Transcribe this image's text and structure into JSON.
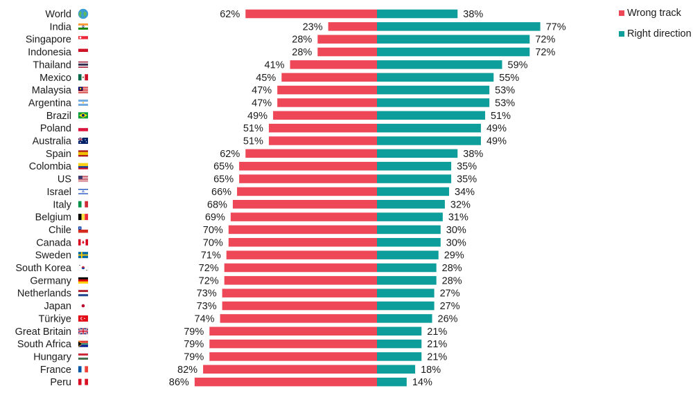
{
  "colors": {
    "wrong": "#EE4758",
    "right": "#0D9E9C"
  },
  "legend": {
    "wrong_label": "Wrong track",
    "right_label": "Right direction"
  },
  "chart_data": {
    "type": "bar",
    "orientation": "horizontal-diverging",
    "categories": [
      "World",
      "India",
      "Singapore",
      "Indonesia",
      "Thailand",
      "Mexico",
      "Malaysia",
      "Argentina",
      "Brazil",
      "Poland",
      "Australia",
      "Spain",
      "Colombia",
      "US",
      "Israel",
      "Italy",
      "Belgium",
      "Chile",
      "Canada",
      "Sweden",
      "South Korea",
      "Germany",
      "Netherlands",
      "Japan",
      "Türkiye",
      "Great Britain",
      "South Africa",
      "Hungary",
      "France",
      "Peru"
    ],
    "flag_icons": [
      "globe-icon",
      "india-flag-icon",
      "singapore-flag-icon",
      "indonesia-flag-icon",
      "thailand-flag-icon",
      "mexico-flag-icon",
      "malaysia-flag-icon",
      "argentina-flag-icon",
      "brazil-flag-icon",
      "poland-flag-icon",
      "australia-flag-icon",
      "spain-flag-icon",
      "colombia-flag-icon",
      "us-flag-icon",
      "israel-flag-icon",
      "italy-flag-icon",
      "belgium-flag-icon",
      "chile-flag-icon",
      "canada-flag-icon",
      "sweden-flag-icon",
      "south-korea-flag-icon",
      "germany-flag-icon",
      "netherlands-flag-icon",
      "japan-flag-icon",
      "turkiye-flag-icon",
      "great-britain-flag-icon",
      "south-africa-flag-icon",
      "hungary-flag-icon",
      "france-flag-icon",
      "peru-flag-icon"
    ],
    "series": [
      {
        "name": "Wrong track",
        "values": [
          62,
          23,
          28,
          28,
          41,
          45,
          47,
          47,
          49,
          51,
          51,
          62,
          65,
          65,
          66,
          68,
          69,
          70,
          70,
          71,
          72,
          72,
          73,
          73,
          74,
          79,
          79,
          79,
          82,
          86
        ]
      },
      {
        "name": "Right direction",
        "values": [
          38,
          77,
          72,
          72,
          59,
          55,
          53,
          53,
          51,
          49,
          49,
          38,
          35,
          35,
          34,
          32,
          31,
          30,
          30,
          29,
          28,
          28,
          27,
          27,
          26,
          21,
          21,
          21,
          18,
          14
        ]
      }
    ],
    "value_suffix": "%",
    "legend_position": "top-right",
    "grid": false
  }
}
